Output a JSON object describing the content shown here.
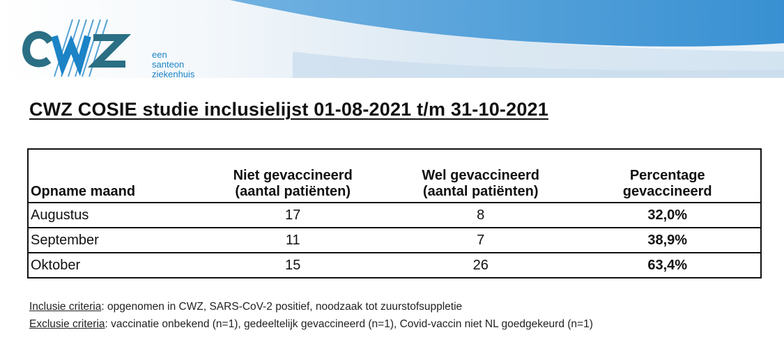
{
  "logo": {
    "wordmark": "CWZ",
    "tagline": [
      "een",
      "santeon",
      "ziekenhuis"
    ]
  },
  "title": "CWZ COSIE studie inclusielijst 01-08-2021 t/m 31-10-2021",
  "table": {
    "headers": [
      [
        "Opname maand"
      ],
      [
        "Niet gevaccineerd",
        "(aantal patiënten)"
      ],
      [
        "Wel gevaccineerd",
        "(aantal patiënten)"
      ],
      [
        "Percentage",
        "gevaccineerd"
      ]
    ],
    "rows": [
      {
        "month": "Augustus",
        "niet": "17",
        "wel": "8",
        "pct": "32,0%"
      },
      {
        "month": "September",
        "niet": "11",
        "wel": "7",
        "pct": "38,9%"
      },
      {
        "month": "Oktober",
        "niet": "15",
        "wel": "26",
        "pct": "63,4%"
      }
    ]
  },
  "notes": {
    "inclusie_label": "Inclusie criteria",
    "inclusie_text": ": opgenomen in CWZ, SARS-CoV-2 positief, noodzaak tot zuurstofsuppletie",
    "exclusie_label": "Exclusie criteria",
    "exclusie_text": ": vaccinatie onbekend (n=1), gedeeltelijk gevaccineerd (n=1), Covid-vaccin niet NL goedgekeurd (n=1)"
  },
  "colors": {
    "brand_blue": "#1b83c6",
    "band_light": "#d6e6f3",
    "band_mid": "#4d9fd8",
    "logo_teal": "#2a6f84"
  }
}
